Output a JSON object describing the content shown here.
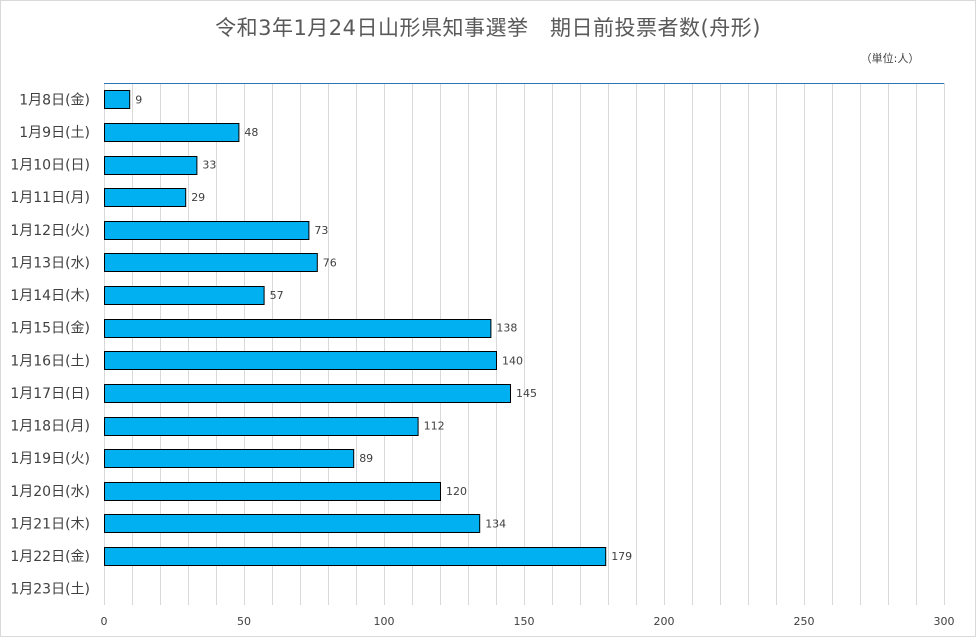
{
  "title": "令和3年1月24日山形県知事選挙　期日前投票者数(舟形)",
  "unit_label": "（単位:人）",
  "colors": {
    "bar": "#00b0f0",
    "bar_stroke": "#000000",
    "grid": "#d9d9d9",
    "axis": "#2e75b6",
    "text": "#404040"
  },
  "chart_data": {
    "type": "bar",
    "orientation": "horizontal",
    "title": "令和3年1月24日山形県知事選挙　期日前投票者数(舟形)",
    "categories": [
      "1月8日(金)",
      "1月9日(土)",
      "1月10日(日)",
      "1月11日(月)",
      "1月12日(火)",
      "1月13日(水)",
      "1月14日(木)",
      "1月15日(金)",
      "1月16日(土)",
      "1月17日(日)",
      "1月18日(月)",
      "1月19日(火)",
      "1月20日(水)",
      "1月21日(木)",
      "1月22日(金)",
      "1月23日(土)"
    ],
    "values": [
      9,
      48,
      33,
      29,
      73,
      76,
      57,
      138,
      140,
      145,
      112,
      89,
      120,
      134,
      179,
      null
    ],
    "xlim": [
      0,
      300
    ],
    "ticks": [
      0,
      50,
      100,
      150,
      200,
      250,
      300
    ],
    "grid_step": 10,
    "grid": true,
    "data_labels": true,
    "legend": "none"
  }
}
